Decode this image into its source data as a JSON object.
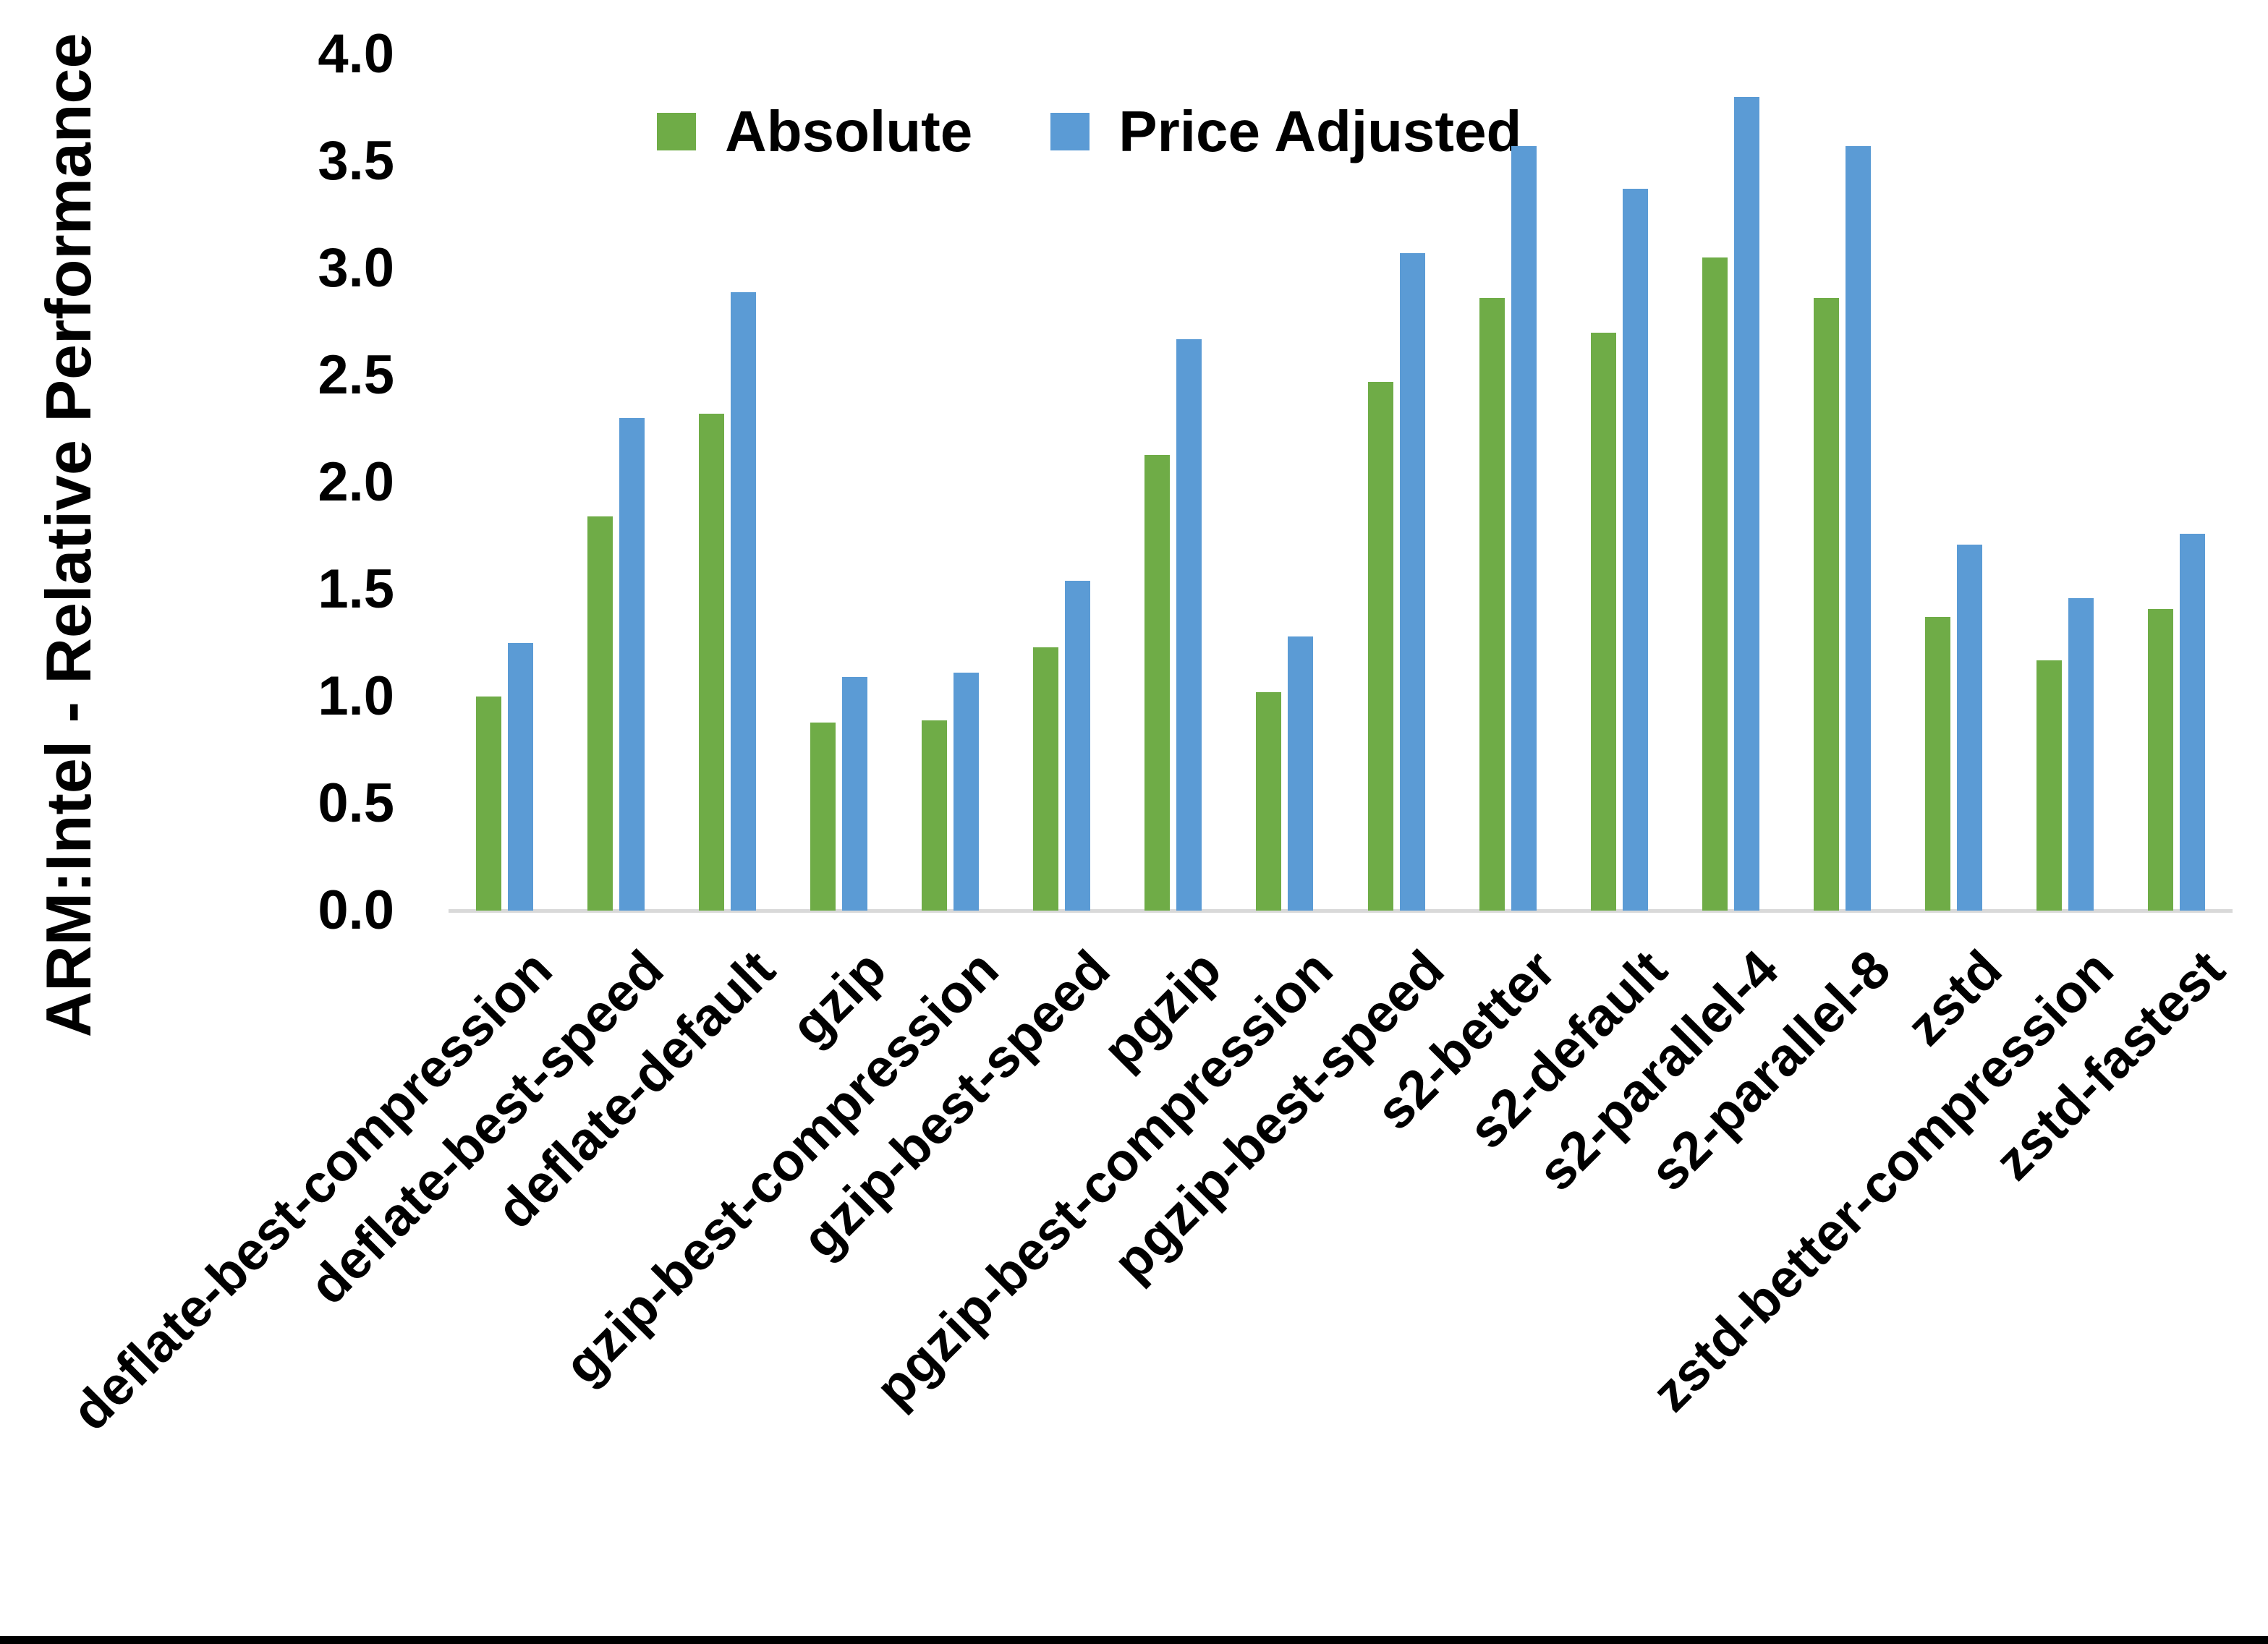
{
  "chart_data": {
    "type": "bar",
    "title": "",
    "xlabel": "",
    "ylabel": "ARM:Intel - Relative Performance",
    "ylim": [
      0.0,
      4.0
    ],
    "ytick_step": 0.5,
    "y_tick_labels": [
      "0.0",
      "0.5",
      "1.0",
      "1.5",
      "2.0",
      "2.5",
      "3.0",
      "3.5",
      "4.0"
    ],
    "grid": false,
    "legend_position": "top",
    "categories": [
      "deflate-best-compression",
      "deflate-best-speed",
      "deflate-default",
      "gzip",
      "gzip-best-compression",
      "gzip-best-speed",
      "pgzip",
      "pgzip-best-compression",
      "pgzip-best-speed",
      "s2-better",
      "s2-default",
      "s2-parallel-4",
      "s2-parallel-8",
      "zstd",
      "zstd-better-compression",
      "zstd-fastest"
    ],
    "series": [
      {
        "name": "Absolute",
        "color": "#6FAC47",
        "values": [
          1.0,
          1.84,
          2.32,
          0.88,
          0.89,
          1.23,
          2.13,
          1.02,
          2.47,
          2.86,
          2.7,
          3.05,
          2.86,
          1.37,
          1.17,
          1.41
        ]
      },
      {
        "name": "Price Adjusted",
        "color": "#5B9BD5",
        "values": [
          1.25,
          2.3,
          2.89,
          1.09,
          1.11,
          1.54,
          2.67,
          1.28,
          3.07,
          3.57,
          3.37,
          3.8,
          3.57,
          1.71,
          1.46,
          1.76
        ]
      }
    ]
  },
  "colors": {
    "background": "#FFFFFF",
    "axis_line": "#D9D9D9",
    "text": "#000000",
    "bottom_border": "#000000"
  },
  "layout_values": {
    "note_visible_numbers_only": "axis ticks 0.0 through 4.0 by 0.5"
  }
}
